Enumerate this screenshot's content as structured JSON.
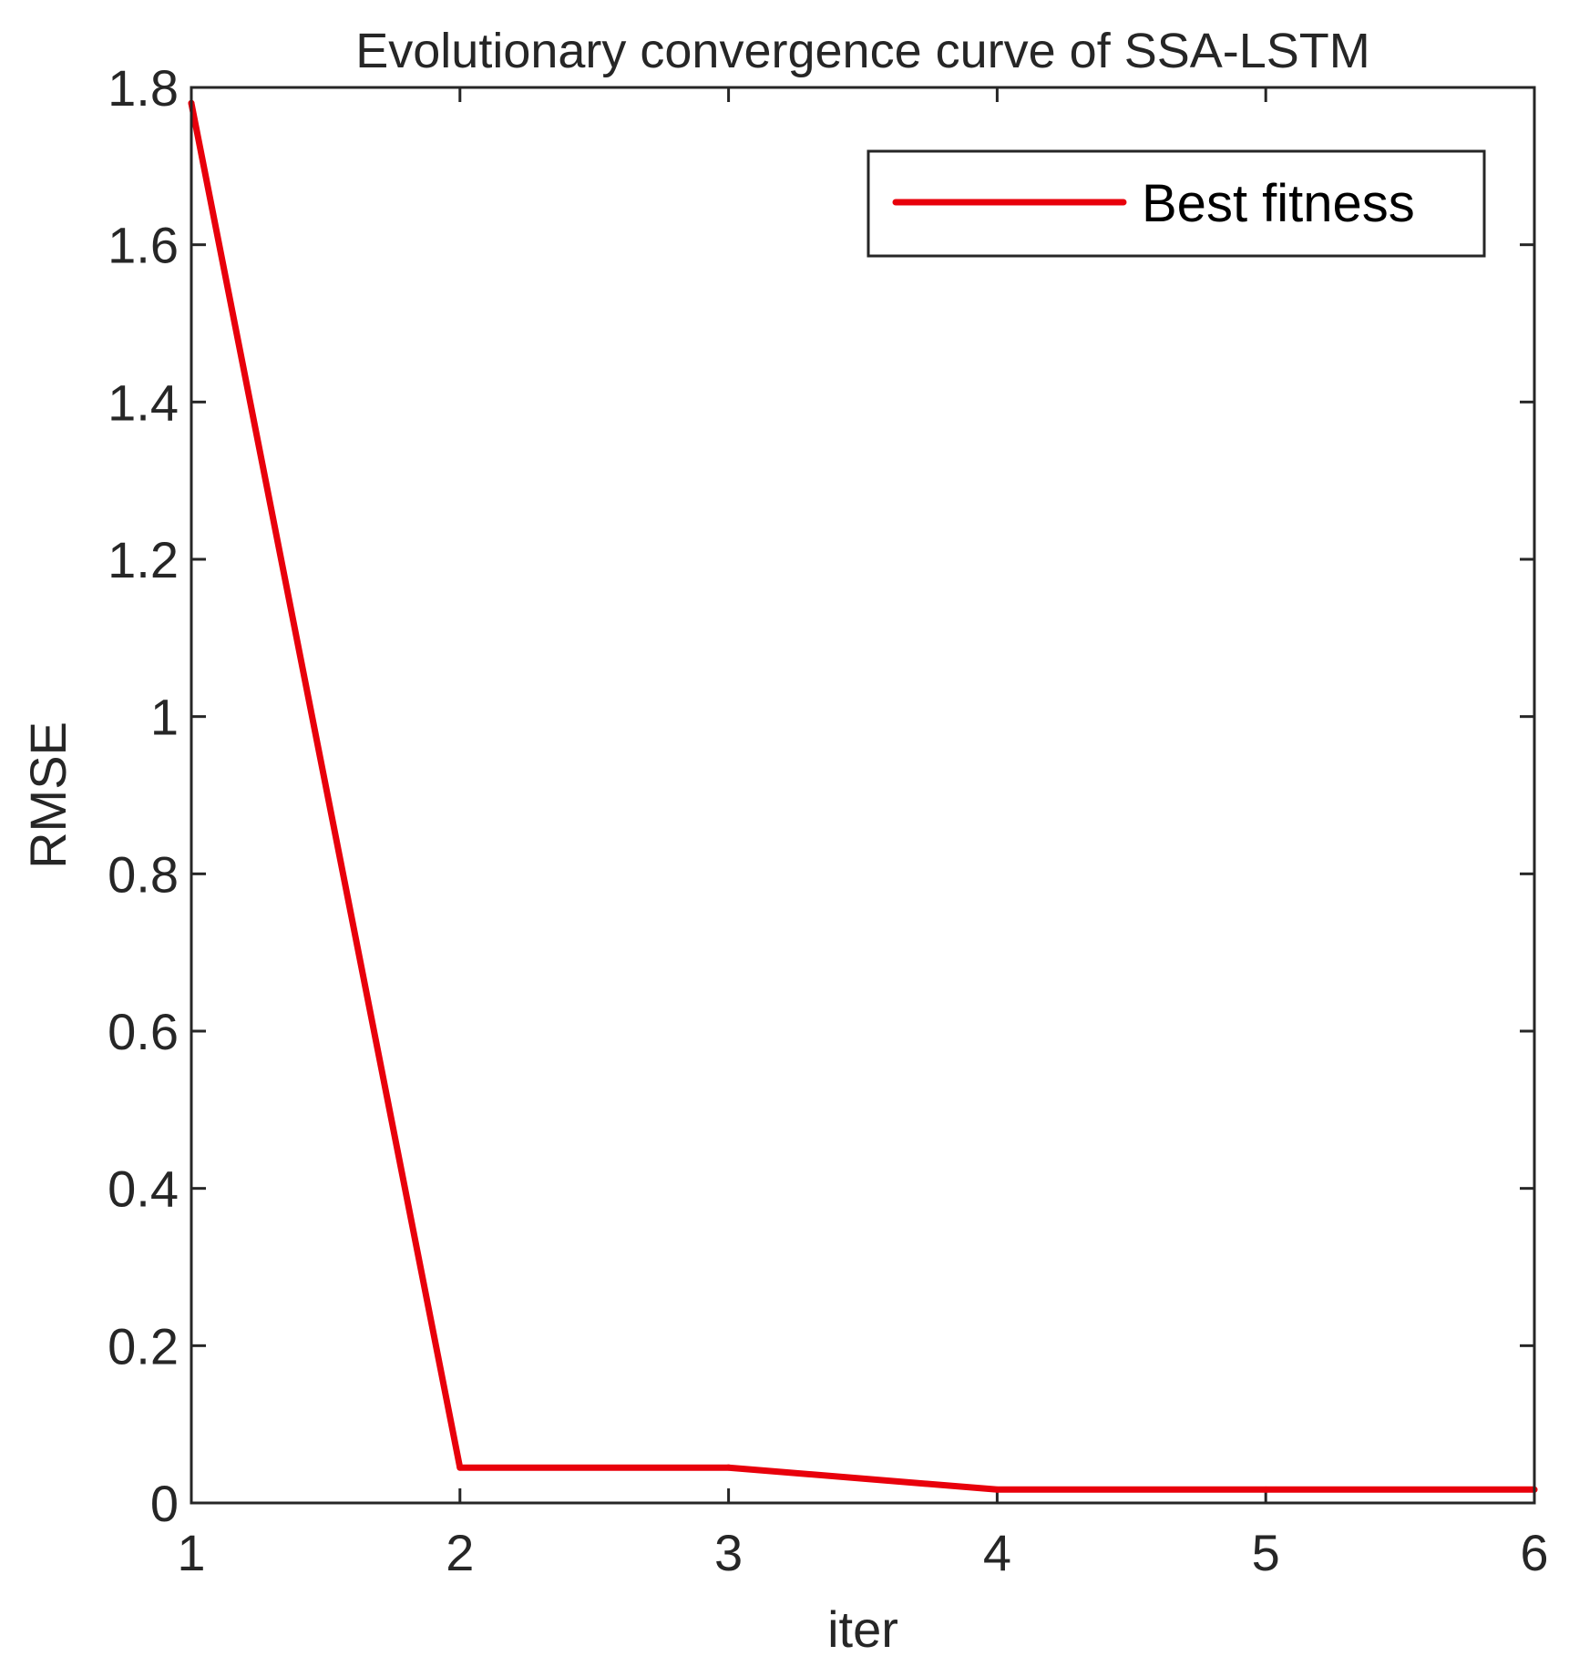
{
  "chart_data": {
    "type": "line",
    "title": "Evolutionary convergence curve of SSA-LSTM",
    "xlabel": "iter",
    "ylabel": "RMSE",
    "xlim": [
      1,
      6
    ],
    "ylim": [
      0,
      1.8
    ],
    "xticks": [
      1,
      2,
      3,
      4,
      5,
      6
    ],
    "yticks": [
      0,
      0.2,
      0.4,
      0.6,
      0.8,
      1,
      1.2,
      1.4,
      1.6,
      1.8
    ],
    "xtick_labels": [
      "1",
      "2",
      "3",
      "4",
      "5",
      "6"
    ],
    "ytick_labels": [
      "0",
      "0.2",
      "0.4",
      "0.6",
      "0.8",
      "1",
      "1.2",
      "1.4",
      "1.6",
      "1.8"
    ],
    "grid": false,
    "legend_position": "top-right",
    "series": [
      {
        "name": "Best fitness",
        "color": "#e8000b",
        "x": [
          1,
          2,
          3,
          4,
          5,
          6
        ],
        "y": [
          1.78,
          0.045,
          0.045,
          0.017,
          0.017,
          0.017
        ]
      }
    ]
  }
}
